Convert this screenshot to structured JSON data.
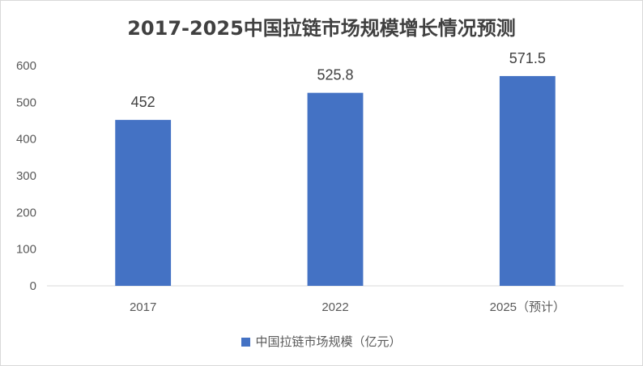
{
  "chart_data": {
    "type": "bar",
    "title": "2017-2025中国拉链市场规模增长情况预测",
    "categories": [
      "2017",
      "2022",
      "2025（预计）"
    ],
    "series": [
      {
        "name": "中国拉链市场规模（亿元）",
        "values": [
          452,
          525.8,
          571.5
        ],
        "color": "#4472c4"
      }
    ],
    "data_labels": [
      "452",
      "525.8",
      "571.5"
    ],
    "ylim": [
      0,
      600
    ],
    "yticks": [
      0,
      100,
      200,
      300,
      400,
      500,
      600
    ],
    "grid": false,
    "legend_position": "bottom"
  }
}
